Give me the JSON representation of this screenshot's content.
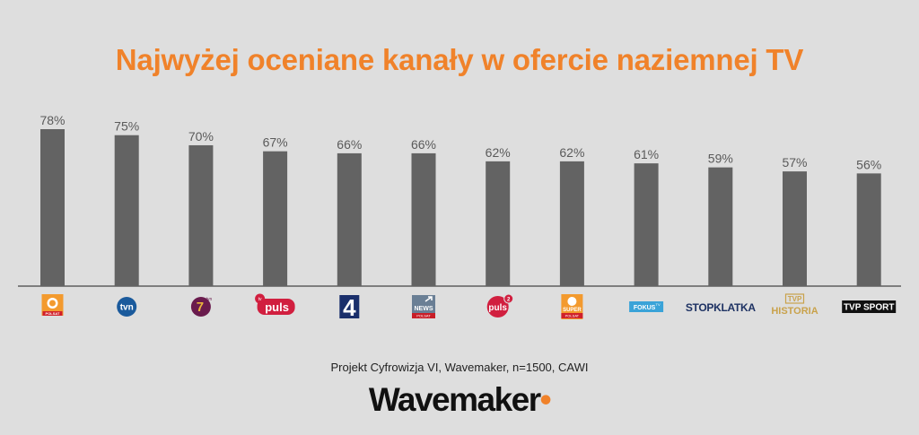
{
  "title": "Najwyżej oceniane kanały w ofercie naziemnej TV",
  "source": "Projekt Cyfrowizja VI, Wavemaker, n=1500, CAWI",
  "brand": "Wavemaker",
  "colors": {
    "accent": "#f0822a",
    "bar": "#636363",
    "background": "#dedede"
  },
  "chart_data": {
    "type": "bar",
    "title": "Najwyżej oceniane kanały w ofercie naziemnej TV",
    "categories": [
      "Polsat",
      "TVN",
      "TV7 (Siódemka)",
      "TV Puls",
      "TV4",
      "Polsat News",
      "Puls 2",
      "Super Polsat",
      "Fokus TV",
      "Stopklatka",
      "TVP Historia",
      "TVP Sport"
    ],
    "values": [
      78,
      75,
      70,
      67,
      66,
      66,
      62,
      62,
      61,
      59,
      57,
      56
    ],
    "value_labels": [
      "78%",
      "75%",
      "70%",
      "67%",
      "66%",
      "66%",
      "62%",
      "62%",
      "61%",
      "59%",
      "57%",
      "56%"
    ],
    "category_display": "channel logos",
    "ylim": [
      0,
      100
    ],
    "grid": false,
    "legend": "none"
  },
  "logos": [
    {
      "icon": "polsat-logo-icon",
      "text": "POLSAT"
    },
    {
      "icon": "tvn-logo-icon",
      "text": "tvn"
    },
    {
      "icon": "tv7-logo-icon",
      "text": "7",
      "sup": "tvn"
    },
    {
      "icon": "tvpuls-logo-icon",
      "text": "puls",
      "sup": "tv"
    },
    {
      "icon": "tv4-logo-icon",
      "text": "4"
    },
    {
      "icon": "polsat-news-logo-icon",
      "text": "NEWS",
      "sub": "POLSAT"
    },
    {
      "icon": "puls2-logo-icon",
      "text": "puls",
      "sup": "2"
    },
    {
      "icon": "super-polsat-logo-icon",
      "text": "SUPER",
      "sub": "POLSAT"
    },
    {
      "icon": "fokus-tv-logo-icon",
      "text": "FOKUS",
      "sup": "TV"
    },
    {
      "icon": "stopklatka-logo-icon",
      "text": "STOPKLATKA"
    },
    {
      "icon": "tvp-historia-logo-icon",
      "text": "HISTORIA",
      "sup": "TVP"
    },
    {
      "icon": "tvp-sport-logo-icon",
      "text": "TVP SPORT"
    }
  ]
}
